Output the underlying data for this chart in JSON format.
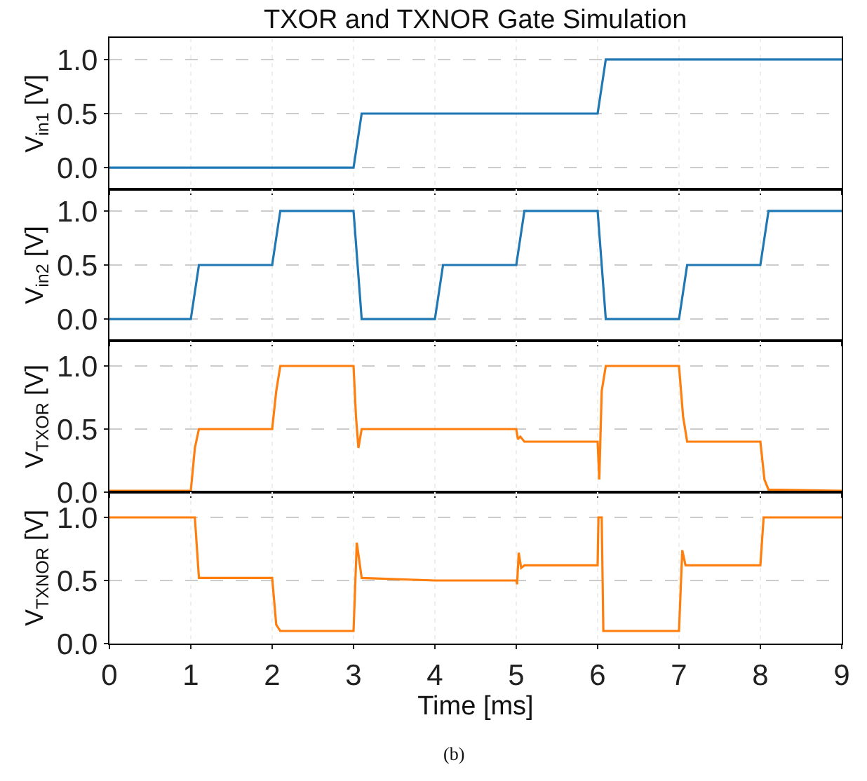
{
  "chart_data": [
    {
      "type": "line",
      "title": "TXOR and TXNOR Gate Simulation",
      "ylabel": "V$_{in1}$ [V]",
      "xlim": [
        0,
        9
      ],
      "xticks": [
        0,
        1,
        2,
        3,
        4,
        5,
        6,
        7,
        8,
        9
      ],
      "ylim": [
        -0.2,
        1.2
      ],
      "yticks": [
        {
          "value": 0,
          "label": "0.0"
        },
        {
          "value": 0.5,
          "label": "0.5"
        },
        {
          "value": 1,
          "label": "1.0"
        }
      ],
      "grid": true,
      "tick_labels": "y",
      "line_style": "solid",
      "marker": "none",
      "series": [
        {
          "color": "#1f77b4",
          "x": [
            0,
            3.0,
            3.1,
            6.0,
            6.1,
            9
          ],
          "values": [
            0,
            0,
            0.5,
            0.5,
            1.0,
            1.0
          ]
        }
      ]
    },
    {
      "type": "line",
      "ylabel": "V$_{in2}$ [V]",
      "xlim": [
        0,
        9
      ],
      "xticks": [
        0,
        1,
        2,
        3,
        4,
        5,
        6,
        7,
        8,
        9
      ],
      "ylim": [
        -0.2,
        1.2
      ],
      "yticks": [
        {
          "value": 0,
          "label": "0.0"
        },
        {
          "value": 0.5,
          "label": "0.5"
        },
        {
          "value": 1,
          "label": "1.0"
        }
      ],
      "grid": true,
      "tick_labels": "y",
      "line_style": "solid",
      "marker": "none",
      "series": [
        {
          "color": "#1f77b4",
          "x": [
            0,
            1.0,
            1.1,
            2.0,
            2.1,
            3.0,
            3.1,
            4.0,
            4.1,
            5.0,
            5.1,
            6.0,
            6.1,
            7.0,
            7.1,
            8.0,
            8.1,
            9
          ],
          "values": [
            0,
            0,
            0.5,
            0.5,
            1.0,
            1.0,
            0,
            0,
            0.5,
            0.5,
            1.0,
            1.0,
            0,
            0,
            0.5,
            0.5,
            1.0,
            1.0
          ]
        }
      ]
    },
    {
      "type": "line",
      "ylabel": "V$_{TXOR}$ [V]",
      "xlim": [
        0,
        9
      ],
      "xticks": [
        0,
        1,
        2,
        3,
        4,
        5,
        6,
        7,
        8,
        9
      ],
      "ylim": [
        0,
        1.2
      ],
      "yticks": [
        {
          "value": 0,
          "label": "0.0"
        },
        {
          "value": 0.5,
          "label": "0.5"
        },
        {
          "value": 1,
          "label": "1.0"
        }
      ],
      "grid": true,
      "tick_labels": "y",
      "line_style": "solid",
      "marker": "none",
      "series": [
        {
          "color": "#ff7f0e",
          "x": [
            0,
            1.0,
            1.05,
            1.1,
            2.0,
            2.05,
            2.1,
            3.0,
            3.03,
            3.06,
            3.1,
            4.0,
            5.0,
            5.02,
            5.05,
            5.1,
            6.0,
            6.02,
            6.05,
            6.1,
            7.0,
            7.05,
            7.1,
            8.0,
            8.05,
            8.1,
            9
          ],
          "values": [
            0.01,
            0.01,
            0.35,
            0.5,
            0.5,
            0.8,
            1.0,
            1.0,
            0.6,
            0.35,
            0.5,
            0.5,
            0.5,
            0.42,
            0.44,
            0.4,
            0.4,
            0.1,
            0.8,
            1.0,
            1.0,
            0.6,
            0.4,
            0.4,
            0.1,
            0.02,
            0.01
          ]
        }
      ]
    },
    {
      "type": "line",
      "ylabel": "V$_{TXNOR}$ [V]",
      "xlabel": "Time [ms]",
      "xlim": [
        0,
        9
      ],
      "xticks": [
        0,
        1,
        2,
        3,
        4,
        5,
        6,
        7,
        8,
        9
      ],
      "ylim": [
        0,
        1.2
      ],
      "yticks": [
        {
          "value": 0,
          "label": "0.0"
        },
        {
          "value": 0.5,
          "label": "0.5"
        },
        {
          "value": 1,
          "label": "1.0"
        }
      ],
      "grid": true,
      "line_style": "solid",
      "marker": "none",
      "annotations": [
        "(b)"
      ],
      "series": [
        {
          "color": "#ff7f0e",
          "x": [
            0,
            1.05,
            1.1,
            2.0,
            2.05,
            2.1,
            3.0,
            3.04,
            3.1,
            4.0,
            5.0,
            5.01,
            5.03,
            5.06,
            5.1,
            6.0,
            6.01,
            6.05,
            6.07,
            7.0,
            7.04,
            7.08,
            8.0,
            8.04,
            9
          ],
          "values": [
            1.0,
            1.0,
            0.52,
            0.52,
            0.15,
            0.1,
            0.1,
            0.8,
            0.52,
            0.5,
            0.5,
            0.47,
            0.72,
            0.6,
            0.62,
            0.62,
            1.0,
            1.0,
            0.1,
            0.1,
            0.74,
            0.62,
            0.62,
            1.0,
            1.0
          ]
        }
      ]
    }
  ]
}
